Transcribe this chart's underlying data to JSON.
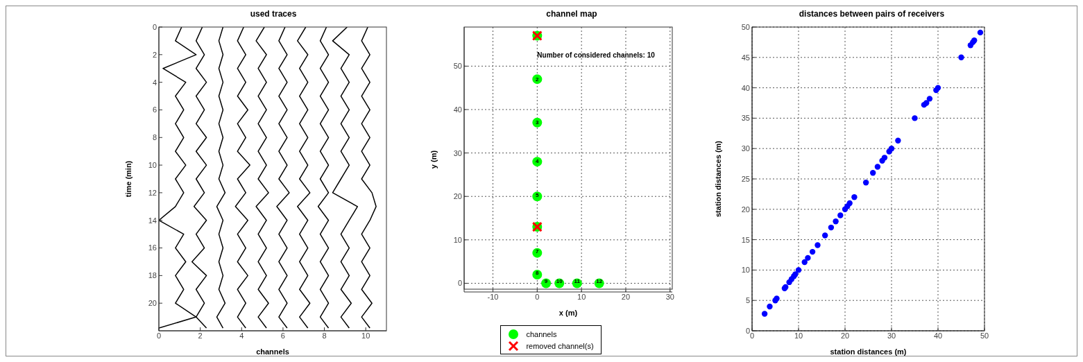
{
  "chart_data": [
    {
      "type": "line",
      "orientation": "horizontal",
      "title": "used traces",
      "xlabel": "channels",
      "ylabel": "time (min)",
      "xlim": [
        0,
        11
      ],
      "xticks": [
        0,
        2,
        4,
        6,
        8,
        10
      ],
      "ylim": [
        22,
        0
      ],
      "yticks": [
        0,
        2,
        4,
        6,
        8,
        10,
        12,
        14,
        16,
        18,
        20
      ],
      "marker": "none",
      "line_style": "solid",
      "legend": false,
      "x": [
        0,
        1,
        2,
        3,
        4,
        5,
        6,
        7,
        8,
        9,
        10,
        11,
        12,
        13,
        14,
        15,
        16,
        17,
        18,
        19,
        20,
        21,
        21.8
      ],
      "series": [
        {
          "color": "#000000",
          "values": [
            1.1,
            0.8,
            1.8,
            0.2,
            1.3,
            0.8,
            1.2,
            0.8,
            1.2,
            0.8,
            1.3,
            0.8,
            1.2,
            0.8,
            0.0,
            1.2,
            0.8,
            1.3,
            0.8,
            1.2,
            0.8,
            1.8,
            0.0
          ]
        },
        {
          "color": "#000000",
          "values": [
            2.1,
            1.8,
            2.2,
            1.8,
            2.3,
            1.8,
            2.2,
            1.8,
            2.3,
            1.8,
            2.3,
            1.8,
            2.2,
            1.7,
            2.3,
            1.8,
            2.2,
            1.6,
            2.3,
            1.8,
            2.2,
            1.8,
            2.3
          ]
        },
        {
          "color": "#000000",
          "values": [
            3.1,
            2.9,
            3.1,
            2.9,
            3.1,
            2.9,
            3.1,
            2.9,
            3.1,
            2.9,
            3.1,
            2.9,
            3.2,
            2.8,
            3.1,
            2.9,
            3.1,
            2.9,
            3.1,
            2.9,
            3.2,
            2.8,
            3.1
          ]
        },
        {
          "color": "#000000",
          "values": [
            4.1,
            3.8,
            4.2,
            3.8,
            4.2,
            3.8,
            4.3,
            3.8,
            4.2,
            3.8,
            4.4,
            3.8,
            4.2,
            3.7,
            4.3,
            3.8,
            4.2,
            3.8,
            4.3,
            3.8,
            4.2,
            3.8,
            4.2
          ]
        },
        {
          "color": "#000000",
          "values": [
            5.1,
            4.7,
            5.2,
            4.8,
            5.2,
            4.8,
            5.2,
            4.8,
            5.2,
            4.8,
            5.2,
            4.8,
            5.3,
            4.7,
            5.2,
            4.8,
            5.2,
            4.8,
            5.2,
            4.8,
            5.3,
            4.8,
            5.2
          ]
        },
        {
          "color": "#000000",
          "values": [
            6.1,
            5.8,
            6.2,
            5.8,
            6.2,
            5.8,
            6.2,
            5.8,
            6.2,
            5.8,
            6.2,
            5.8,
            6.3,
            5.7,
            6.2,
            5.8,
            6.2,
            5.8,
            6.2,
            5.8,
            6.2,
            5.8,
            6.2
          ]
        },
        {
          "color": "#000000",
          "values": [
            7.1,
            6.7,
            7.2,
            6.8,
            7.2,
            6.8,
            7.2,
            6.8,
            7.2,
            6.8,
            7.2,
            6.8,
            7.3,
            6.7,
            7.2,
            6.8,
            7.2,
            6.8,
            7.2,
            6.8,
            7.3,
            6.8,
            7.2
          ]
        },
        {
          "color": "#000000",
          "values": [
            8.1,
            7.8,
            8.2,
            7.8,
            8.2,
            7.8,
            8.2,
            7.8,
            8.2,
            7.8,
            8.2,
            7.8,
            8.2,
            7.7,
            8.2,
            7.8,
            8.2,
            7.8,
            8.2,
            7.8,
            8.2,
            7.8,
            8.2
          ]
        },
        {
          "color": "#000000",
          "values": [
            9.1,
            8.4,
            9.2,
            8.8,
            9.2,
            8.8,
            9.2,
            8.8,
            9.2,
            8.8,
            9.2,
            8.8,
            8.4,
            9.6,
            9.2,
            8.8,
            9.2,
            8.8,
            9.2,
            8.8,
            9.3,
            8.8,
            9.2
          ]
        },
        {
          "color": "#000000",
          "values": [
            10.1,
            9.8,
            10.2,
            9.8,
            10.2,
            9.8,
            10.2,
            9.8,
            10.2,
            9.8,
            10.2,
            9.8,
            10.3,
            10.5,
            10.2,
            9.8,
            10.2,
            9.8,
            10.2,
            9.8,
            10.3,
            9.8,
            10.2
          ]
        }
      ]
    },
    {
      "type": "scatter",
      "title": "channel map",
      "xlabel": "x (m)",
      "ylabel": "y (m)",
      "xlim": [
        -16.5,
        30.5
      ],
      "xticks": [
        -10,
        0,
        10,
        20,
        30
      ],
      "ylim": [
        -2,
        59
      ],
      "yticks": [
        0,
        10,
        20,
        30,
        40,
        50
      ],
      "grid": true,
      "legend": "bottom",
      "series": [
        {
          "name": "channels",
          "color": "#00ff00",
          "marker": "circle",
          "x": [
            0,
            0,
            0,
            0,
            0,
            0,
            0,
            0,
            2,
            5,
            9,
            14
          ],
          "values": [
            57,
            47,
            37,
            28,
            20,
            13,
            7,
            2,
            0,
            0,
            0,
            0
          ]
        },
        {
          "name": "removed channel(s)",
          "color": "#ff0000",
          "marker": "cross",
          "x": [
            0,
            0
          ],
          "values": [
            57,
            13
          ]
        }
      ],
      "annotations": [
        "Number of considered channels: 10",
        {
          "text": "2",
          "x": 0,
          "y": 47
        },
        {
          "text": "3",
          "x": 0,
          "y": 37
        },
        {
          "text": "4",
          "x": 0,
          "y": 28
        },
        {
          "text": "5",
          "x": 0,
          "y": 20
        },
        {
          "text": "7",
          "x": 0,
          "y": 7
        },
        {
          "text": "8",
          "x": 0,
          "y": 2
        },
        {
          "text": "9",
          "x": 2,
          "y": 0
        },
        {
          "text": "10",
          "x": 5,
          "y": 0
        },
        {
          "text": "11",
          "x": 9,
          "y": 0
        },
        {
          "text": "12",
          "x": 14,
          "y": 0
        }
      ]
    },
    {
      "type": "scatter",
      "title": "distances between pairs of receivers",
      "xlabel": "station distances (m)",
      "ylabel": "station distances (m)",
      "xlim": [
        0,
        50
      ],
      "xticks": [
        0,
        10,
        20,
        30,
        40,
        50
      ],
      "ylim": [
        0,
        50
      ],
      "yticks": [
        0,
        5,
        10,
        15,
        20,
        25,
        30,
        35,
        40,
        45,
        50
      ],
      "grid": true,
      "legend": false,
      "series": [
        {
          "color": "#0000ff",
          "marker": "circle",
          "x": [
            2.7,
            3.8,
            5,
            5.3,
            7,
            7.2,
            8,
            8.5,
            9,
            9.3,
            10,
            11.3,
            12,
            13,
            14.1,
            15.7,
            17,
            18,
            19,
            20,
            20.5,
            21,
            22,
            24.5,
            26,
            27,
            28,
            28.5,
            29.5,
            30,
            31.4,
            35,
            37,
            37.5,
            38.2,
            39.6,
            40,
            45,
            47,
            47.5,
            47.8,
            49.1
          ],
          "values": [
            2.8,
            4,
            5,
            5.3,
            7,
            7.2,
            8,
            8.5,
            9,
            9.3,
            10,
            11.3,
            12,
            13,
            14.1,
            15.7,
            17,
            18,
            19,
            20,
            20.5,
            21,
            22,
            24.4,
            26,
            27,
            28,
            28.5,
            29.5,
            30,
            31.3,
            35,
            37.2,
            37.5,
            38.2,
            39.6,
            40,
            45,
            47,
            47.5,
            47.8,
            49.1
          ]
        }
      ]
    }
  ]
}
